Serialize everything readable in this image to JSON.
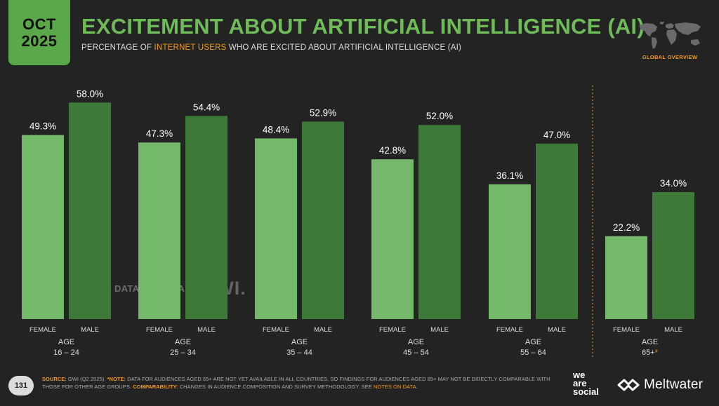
{
  "header": {
    "month": "OCT",
    "year": "2025",
    "title": "EXCITEMENT ABOUT ARTIFICIAL INTELLIGENCE (AI)",
    "subtitle_pre": "PERCENTAGE OF ",
    "subtitle_highlight": "INTERNET USERS",
    "subtitle_post": " WHO ARE EXCITED ABOUT ARTIFICIAL INTELLIGENCE (AI)",
    "region_label": "GLOBAL OVERVIEW"
  },
  "watermark": {
    "left": "DATAREPORTAL",
    "right": "GWI."
  },
  "footer": {
    "page": "131",
    "source_label": "SOURCE:",
    "source_text": " GWI (Q2 2025). ",
    "note_label": "*NOTE:",
    "note_text": " DATA FOR AUDIENCES AGED 65+ ARE NOT YET AVAILABLE IN ALL COUNTRIES, SO FINDINGS FOR AUDIENCES AGED 65+ MAY NOT BE DIRECTLY COMPARABLE WITH THOSE FOR OTHER AGE GROUPS. ",
    "comp_label": "COMPARABILITY:",
    "comp_text": " CHANGES IN AUDIENCE COMPOSITION AND SURVEY METHODOLOGY. SEE ",
    "notes_link": "NOTES ON DATA",
    "end": "."
  },
  "brands": {
    "was1": "we",
    "was2": "are",
    "was3": "social",
    "meltwater": "Meltwater"
  },
  "colors": {
    "female": "#74b86a",
    "male": "#3e7a37",
    "accent": "#f39a1f",
    "title": "#6fbb5a"
  },
  "chart_data": {
    "type": "bar",
    "categories": [
      "16 – 24",
      "25 – 34",
      "35 – 44",
      "45 – 54",
      "55 – 64",
      "65+"
    ],
    "group_label": "AGE",
    "footnote_marker": "*",
    "series": [
      {
        "name": "FEMALE",
        "values": [
          49.3,
          47.3,
          48.4,
          42.8,
          36.1,
          22.2
        ]
      },
      {
        "name": "MALE",
        "values": [
          58.0,
          54.4,
          52.9,
          52.0,
          47.0,
          34.0
        ]
      }
    ],
    "value_labels": [
      [
        "49.3%",
        "47.3%",
        "48.4%",
        "42.8%",
        "36.1%",
        "22.2%"
      ],
      [
        "58.0%",
        "54.4%",
        "52.9%",
        "52.0%",
        "47.0%",
        "34.0%"
      ]
    ],
    "ylim": [
      0,
      65
    ],
    "legend": "none"
  }
}
